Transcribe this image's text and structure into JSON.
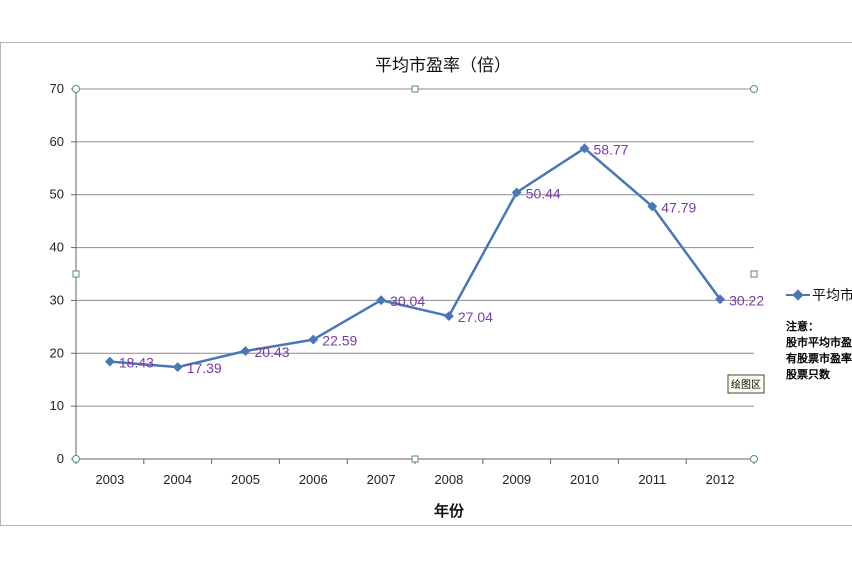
{
  "chart_data": {
    "type": "line",
    "title": "平均市盈率（倍）",
    "xlabel": "年份",
    "ylabel": "",
    "categories": [
      "2003",
      "2004",
      "2005",
      "2006",
      "2007",
      "2008",
      "2009",
      "2010",
      "2011",
      "2012"
    ],
    "series": [
      {
        "name": "平均市盈率",
        "values": [
          18.43,
          17.39,
          20.43,
          22.59,
          30.04,
          27.04,
          50.44,
          58.77,
          47.79,
          30.22
        ],
        "labels": [
          "18.43",
          "17.39",
          "20.43",
          "22.59",
          "30.04",
          "27.04",
          "50.44",
          "58.77",
          "47.79",
          "30.22"
        ]
      }
    ],
    "ylim": [
      0,
      70
    ],
    "yticks": [
      0,
      10,
      20,
      30,
      40,
      50,
      60,
      70
    ],
    "grid": true,
    "legend": "right",
    "legend_text": "平均市",
    "note_lines": [
      "注意：",
      "股市平均市盈",
      "有股票市盈率",
      "股票只数"
    ],
    "tooltip": "绘图区",
    "colors": {
      "line": "#4a77b4",
      "label": "#7a3aa3",
      "grid": "#8c8c8c"
    }
  }
}
